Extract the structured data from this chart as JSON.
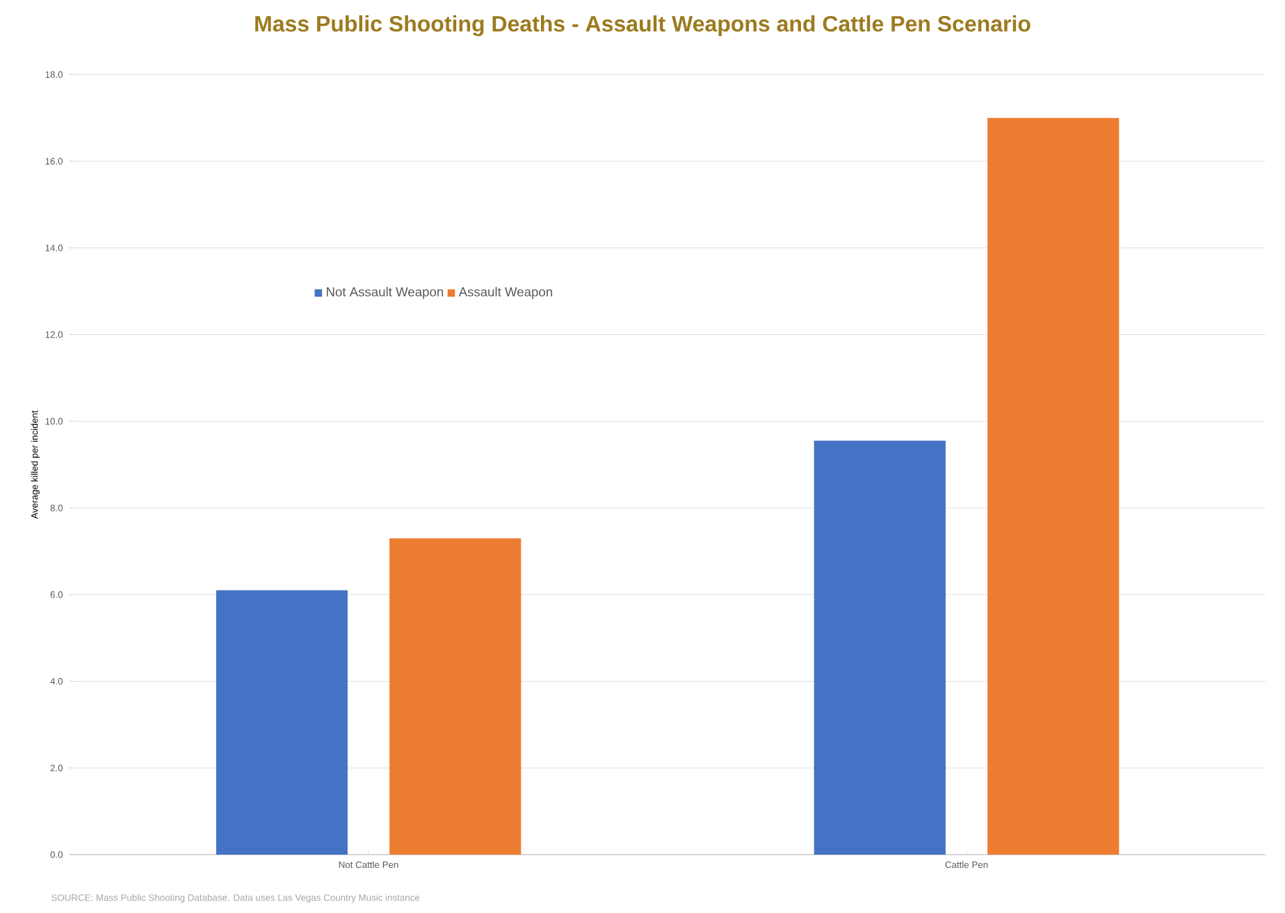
{
  "chart_data": {
    "type": "bar",
    "title": "Mass Public Shooting Deaths - Assault Weapons and Cattle Pen Scenario",
    "ylabel": "Average killed per incident",
    "categories": [
      "Not Cattle Pen",
      "Cattle Pen"
    ],
    "series": [
      {
        "name": "Not Assault Weapon",
        "color": "#4472c4",
        "values": [
          6.1,
          9.55
        ]
      },
      {
        "name": "Assault Weapon",
        "color": "#ed7d31",
        "values": [
          7.3,
          17.0
        ]
      }
    ],
    "ylim": [
      0,
      18
    ],
    "yticks": [
      {
        "value": 0,
        "label": "0.0"
      },
      {
        "value": 2,
        "label": "2.0"
      },
      {
        "value": 4,
        "label": "4.0"
      },
      {
        "value": 6,
        "label": "6.0"
      },
      {
        "value": 8,
        "label": "8.0"
      },
      {
        "value": 10,
        "label": "10.0"
      },
      {
        "value": 12,
        "label": "12.0"
      },
      {
        "value": 14,
        "label": "14.0"
      },
      {
        "value": 16,
        "label": "16.0"
      },
      {
        "value": 18,
        "label": "18.0"
      }
    ],
    "grid": "y",
    "legend": "top left",
    "annotations": [
      "SOURCE: Mass Public Shooting Database. Data uses Las Vegas Country Music instance"
    ]
  }
}
